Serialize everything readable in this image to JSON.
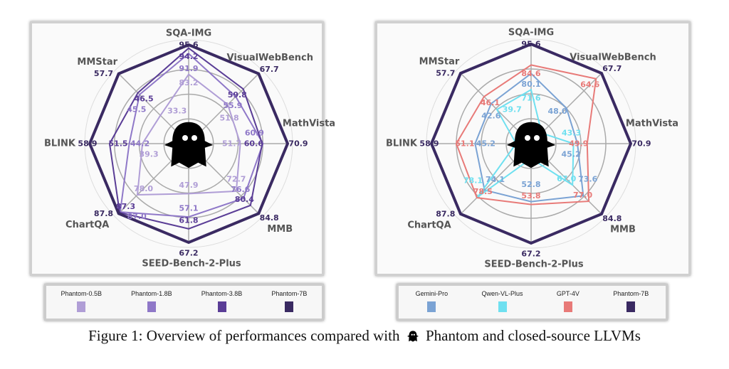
{
  "chart_data": [
    {
      "type": "radar",
      "axes": [
        "SQA-IMG",
        "VisualWebBench",
        "MathVista",
        "MMB",
        "SEED-Bench-2-Plus",
        "ChartQA",
        "BLINK",
        "MMStar"
      ],
      "series": [
        {
          "name": "Phantom-0.5B",
          "color": "#b09ed6",
          "values": [
            83.2,
            51.8,
            51.7,
            72.7,
            47.9,
            78.0,
            39.3,
            33.3
          ]
        },
        {
          "name": "Phantom-1.8B",
          "color": "#8f78c8",
          "values": [
            91.9,
            55.9,
            60.9,
            76.6,
            57.1,
            87.0,
            44.2,
            45.5
          ]
        },
        {
          "name": "Phantom-3.8B",
          "color": "#5a3d96",
          "values": [
            94.2,
            59.8,
            60.6,
            80.4,
            61.8,
            87.3,
            51.5,
            46.5
          ]
        },
        {
          "name": "Phantom-7B",
          "color": "#3a2a62",
          "values": [
            95.6,
            67.7,
            70.9,
            84.8,
            67.2,
            87.8,
            58.9,
            57.7
          ]
        }
      ],
      "grid": true,
      "legend": "bottom"
    },
    {
      "type": "radar",
      "axes": [
        "SQA-IMG",
        "VisualWebBench",
        "MathVista",
        "MMB",
        "SEED-Bench-2-Plus",
        "ChartQA",
        "BLINK",
        "MMStar"
      ],
      "series": [
        {
          "name": "Gemini-Pro",
          "color": "#7ba3d4",
          "values": [
            80.1,
            48.0,
            45.2,
            73.6,
            52.8,
            74.1,
            45.2,
            42.6
          ]
        },
        {
          "name": "Qwen-VL-Plus",
          "color": "#6fe0f0",
          "values": [
            71.6,
            null,
            43.3,
            67.0,
            null,
            78.1,
            null,
            39.7
          ]
        },
        {
          "name": "GPT-4V",
          "color": "#e87a78",
          "values": [
            84.6,
            64.6,
            49.9,
            77.0,
            53.8,
            78.5,
            51.1,
            46.1
          ]
        },
        {
          "name": "Phantom-7B",
          "color": "#3a2a62",
          "values": [
            95.6,
            67.7,
            70.9,
            84.8,
            67.2,
            87.8,
            58.9,
            57.7
          ]
        }
      ],
      "grid": true,
      "legend": "bottom"
    }
  ],
  "caption": {
    "before": "Figure 1: Overview of performances compared with",
    "after": "Phantom and closed-source LLVMs"
  },
  "icon": "ghost-icon"
}
